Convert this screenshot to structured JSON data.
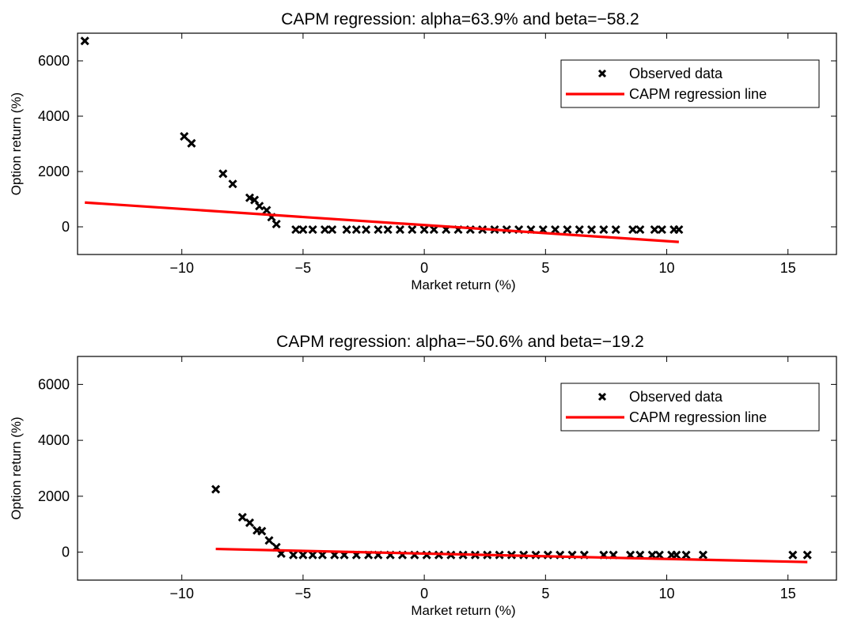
{
  "chart_data": [
    {
      "type": "scatter",
      "title": "CAPM regression: alpha=63.9% and beta=−58.2",
      "xlabel": "Market return (%)",
      "ylabel": "Option return (%)",
      "xlim": [
        -14.3,
        17
      ],
      "ylim": [
        -1000,
        7000
      ],
      "xticks": [
        -10,
        -5,
        0,
        5,
        10,
        15
      ],
      "xtick_labels": [
        "−10",
        "−5",
        "0",
        "5",
        "10",
        "15"
      ],
      "yticks": [
        0,
        2000,
        4000,
        6000
      ],
      "ytick_labels": [
        "0",
        "2000",
        "4000",
        "6000"
      ],
      "grid": false,
      "legend_position": "top-right",
      "series": [
        {
          "name": "Observed data",
          "marker": "x",
          "color": "#000000",
          "points": [
            [
              -14.0,
              6720
            ],
            [
              -9.9,
              3270
            ],
            [
              -9.6,
              3020
            ],
            [
              -8.3,
              1920
            ],
            [
              -7.9,
              1550
            ],
            [
              -7.2,
              1050
            ],
            [
              -7.0,
              970
            ],
            [
              -6.8,
              750
            ],
            [
              -6.5,
              600
            ],
            [
              -6.3,
              350
            ],
            [
              -6.1,
              100
            ],
            [
              -5.3,
              -100
            ],
            [
              -5.0,
              -100
            ],
            [
              -4.6,
              -100
            ],
            [
              -4.1,
              -100
            ],
            [
              -3.8,
              -100
            ],
            [
              -3.2,
              -100
            ],
            [
              -2.8,
              -100
            ],
            [
              -2.4,
              -100
            ],
            [
              -1.9,
              -100
            ],
            [
              -1.5,
              -100
            ],
            [
              -1.0,
              -100
            ],
            [
              -0.5,
              -100
            ],
            [
              0.0,
              -100
            ],
            [
              0.4,
              -100
            ],
            [
              0.9,
              -100
            ],
            [
              1.4,
              -100
            ],
            [
              1.9,
              -100
            ],
            [
              2.4,
              -100
            ],
            [
              2.9,
              -100
            ],
            [
              3.4,
              -100
            ],
            [
              3.9,
              -100
            ],
            [
              4.4,
              -100
            ],
            [
              4.9,
              -100
            ],
            [
              5.4,
              -100
            ],
            [
              5.9,
              -100
            ],
            [
              6.4,
              -100
            ],
            [
              6.9,
              -100
            ],
            [
              7.4,
              -100
            ],
            [
              7.9,
              -100
            ],
            [
              8.6,
              -100
            ],
            [
              8.9,
              -100
            ],
            [
              9.5,
              -100
            ],
            [
              9.8,
              -100
            ],
            [
              10.3,
              -100
            ],
            [
              10.5,
              -100
            ]
          ]
        },
        {
          "name": "CAPM regression line",
          "type": "line",
          "color": "#ff0000",
          "x": [
            -14.0,
            10.5
          ],
          "y": [
            878.7,
            -547.2
          ]
        }
      ]
    },
    {
      "type": "scatter",
      "title": "CAPM regression: alpha=−50.6% and beta=−19.2",
      "xlabel": "Market return (%)",
      "ylabel": "Option return (%)",
      "xlim": [
        -14.3,
        17
      ],
      "ylim": [
        -1000,
        7000
      ],
      "xticks": [
        -10,
        -5,
        0,
        5,
        10,
        15
      ],
      "xtick_labels": [
        "−10",
        "−5",
        "0",
        "5",
        "10",
        "15"
      ],
      "yticks": [
        0,
        2000,
        4000,
        6000
      ],
      "ytick_labels": [
        "0",
        "2000",
        "4000",
        "6000"
      ],
      "grid": false,
      "legend_position": "top-right",
      "series": [
        {
          "name": "Observed data",
          "marker": "x",
          "color": "#000000",
          "points": [
            [
              -8.6,
              2250
            ],
            [
              -7.5,
              1250
            ],
            [
              -7.2,
              1050
            ],
            [
              -6.9,
              780
            ],
            [
              -6.7,
              750
            ],
            [
              -6.4,
              420
            ],
            [
              -6.1,
              180
            ],
            [
              -5.9,
              -50
            ],
            [
              -5.4,
              -100
            ],
            [
              -5.0,
              -100
            ],
            [
              -4.6,
              -100
            ],
            [
              -4.2,
              -100
            ],
            [
              -3.7,
              -100
            ],
            [
              -3.3,
              -100
            ],
            [
              -2.8,
              -100
            ],
            [
              -2.3,
              -100
            ],
            [
              -1.9,
              -100
            ],
            [
              -1.4,
              -100
            ],
            [
              -0.9,
              -100
            ],
            [
              -0.4,
              -100
            ],
            [
              0.1,
              -100
            ],
            [
              0.6,
              -100
            ],
            [
              1.1,
              -100
            ],
            [
              1.6,
              -100
            ],
            [
              2.1,
              -100
            ],
            [
              2.6,
              -100
            ],
            [
              3.1,
              -100
            ],
            [
              3.6,
              -100
            ],
            [
              4.1,
              -100
            ],
            [
              4.6,
              -100
            ],
            [
              5.1,
              -100
            ],
            [
              5.6,
              -100
            ],
            [
              6.1,
              -100
            ],
            [
              6.6,
              -100
            ],
            [
              7.4,
              -100
            ],
            [
              7.8,
              -100
            ],
            [
              8.5,
              -100
            ],
            [
              8.9,
              -100
            ],
            [
              9.4,
              -100
            ],
            [
              9.7,
              -100
            ],
            [
              10.2,
              -100
            ],
            [
              10.4,
              -100
            ],
            [
              10.8,
              -100
            ],
            [
              11.5,
              -100
            ],
            [
              15.2,
              -100
            ],
            [
              15.8,
              -100
            ]
          ]
        },
        {
          "name": "CAPM regression line",
          "type": "line",
          "color": "#ff0000",
          "x": [
            -8.6,
            15.8
          ],
          "y": [
            114.5,
            -354.0
          ]
        }
      ]
    }
  ]
}
